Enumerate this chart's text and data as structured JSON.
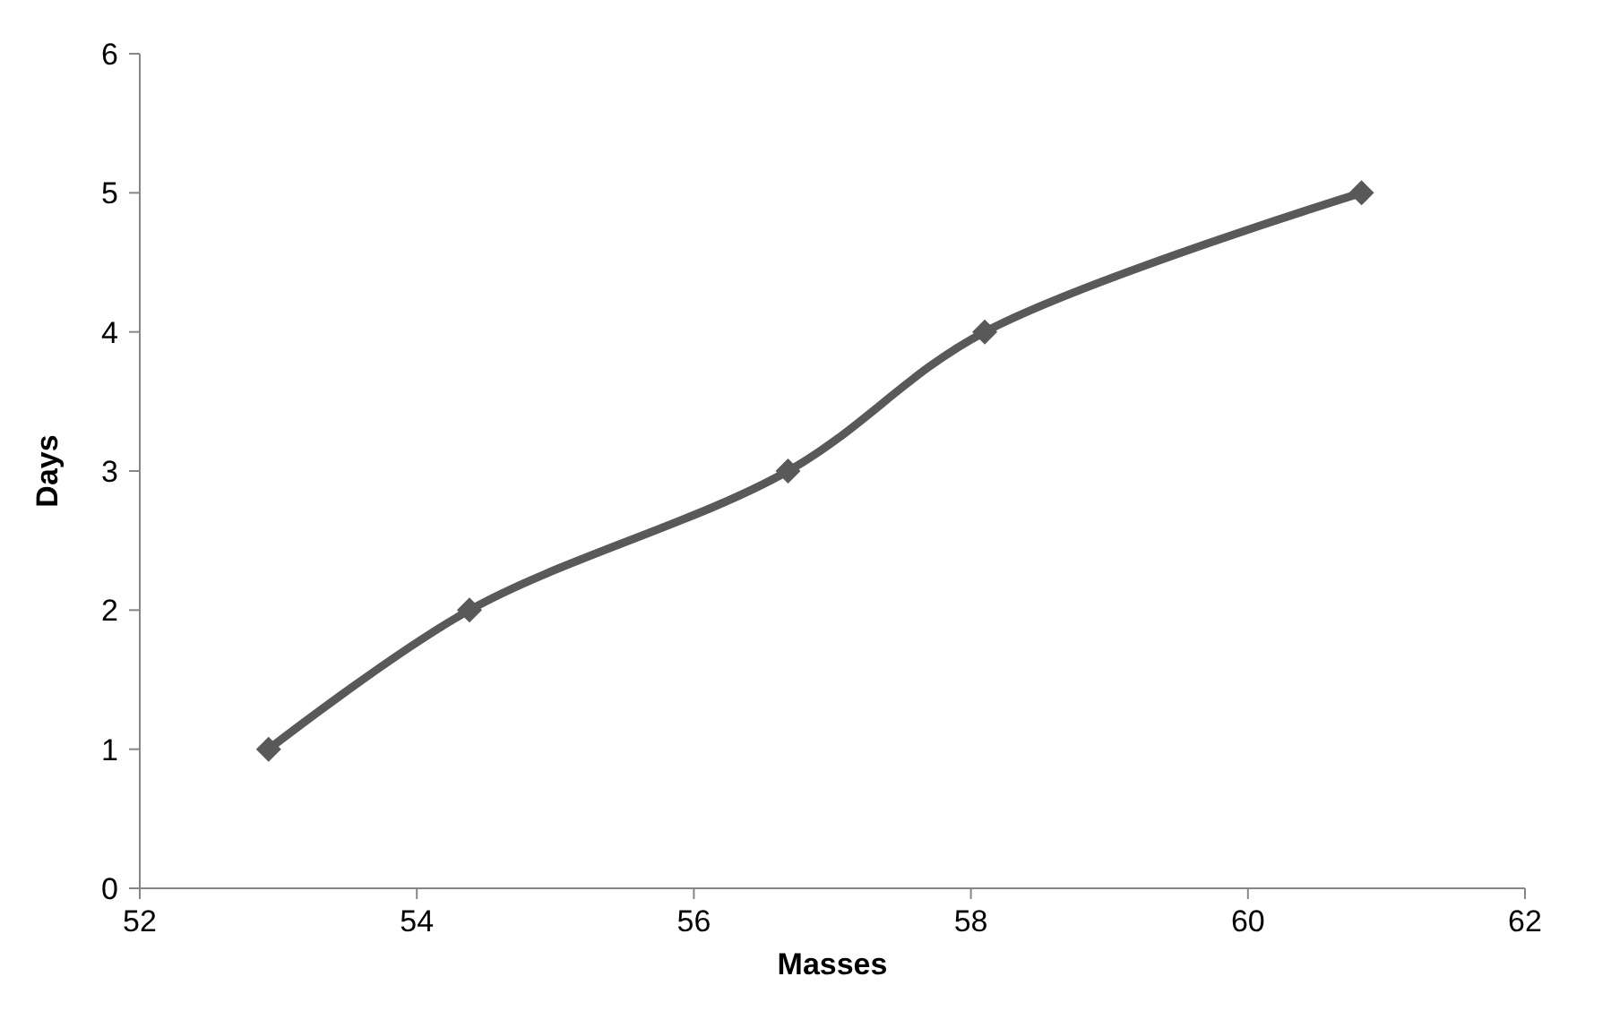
{
  "chart_data": {
    "type": "line",
    "xlabel": "Masses",
    "ylabel": "Days",
    "x": [
      52.93,
      54.38,
      56.68,
      58.1,
      60.82
    ],
    "series": [
      {
        "color": "#595959",
        "values": [
          1,
          2,
          3,
          4,
          5
        ]
      }
    ],
    "xlim": [
      52,
      62
    ],
    "xticks": [
      52,
      54,
      56,
      58,
      60,
      62
    ],
    "ylim": [
      0,
      6
    ],
    "yticks": [
      0,
      1,
      2,
      3,
      4,
      5,
      6
    ],
    "grid": false,
    "marker": "diamond",
    "line_style": "solid"
  }
}
